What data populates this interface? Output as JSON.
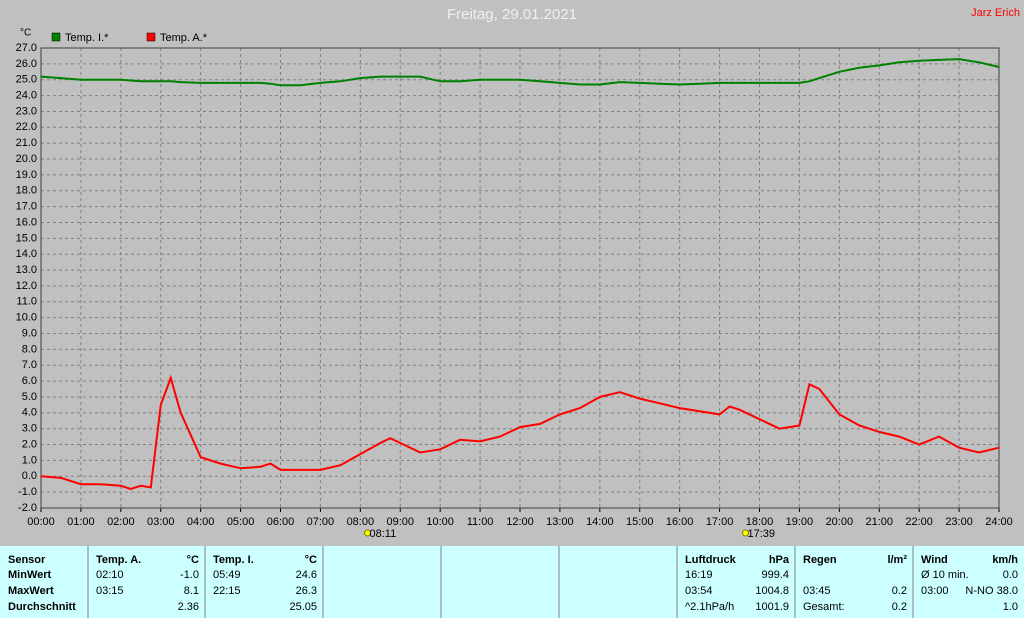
{
  "chart_data": {
    "type": "line",
    "title": "Freitag, 29.01.2021",
    "author": "Jarz Erich",
    "y_unit": "°C",
    "grid": true,
    "legend": "top-left",
    "x": [
      0,
      0.5,
      1,
      1.5,
      2,
      2.25,
      2.5,
      2.75,
      3,
      3.25,
      3.5,
      4,
      4.5,
      5,
      5.5,
      5.75,
      6,
      6.5,
      7,
      7.5,
      8,
      8.5,
      8.75,
      9,
      9.5,
      10,
      10.5,
      11,
      11.5,
      12,
      12.5,
      13,
      13.5,
      14,
      14.5,
      15,
      15.5,
      16,
      16.5,
      17,
      17.25,
      17.5,
      18,
      18.5,
      19,
      19.25,
      19.5,
      20,
      20.5,
      21,
      21.5,
      22,
      22.5,
      23,
      23.5,
      24
    ],
    "series": [
      {
        "name": "Temp. I.*",
        "color": "#008000",
        "values": [
          25.2,
          25.1,
          25.0,
          25.0,
          25.0,
          24.95,
          24.9,
          24.9,
          24.9,
          24.9,
          24.85,
          24.8,
          24.8,
          24.8,
          24.8,
          24.75,
          24.65,
          24.65,
          24.8,
          24.9,
          25.1,
          25.2,
          25.2,
          25.2,
          25.2,
          24.9,
          24.9,
          25.0,
          25.0,
          25.0,
          24.9,
          24.8,
          24.7,
          24.7,
          24.85,
          24.8,
          24.75,
          24.7,
          24.75,
          24.8,
          24.8,
          24.8,
          24.8,
          24.8,
          24.8,
          24.9,
          25.1,
          25.5,
          25.75,
          25.9,
          26.1,
          26.2,
          26.25,
          26.3,
          26.1,
          25.8
        ]
      },
      {
        "name": "Temp. A.*",
        "color": "#ff0000",
        "values": [
          0.0,
          -0.1,
          -0.5,
          -0.5,
          -0.6,
          -0.8,
          -0.6,
          -0.7,
          4.5,
          6.2,
          4.0,
          1.2,
          0.8,
          0.5,
          0.6,
          0.8,
          0.4,
          0.4,
          0.4,
          0.7,
          1.4,
          2.1,
          2.4,
          2.1,
          1.5,
          1.7,
          2.3,
          2.2,
          2.5,
          3.1,
          3.3,
          3.9,
          4.3,
          5.0,
          5.3,
          4.9,
          4.6,
          4.3,
          4.1,
          3.9,
          4.4,
          4.2,
          3.6,
          3.0,
          3.2,
          5.8,
          5.5,
          3.9,
          3.2,
          2.8,
          2.5,
          2.0,
          2.5,
          1.8,
          1.5,
          1.8
        ]
      }
    ],
    "annotations": [
      {
        "x": 8.18,
        "label": "08:11"
      },
      {
        "x": 17.65,
        "label": "17:39"
      }
    ],
    "xlim": [
      0,
      24
    ],
    "xticks": [
      {
        "value": 0,
        "label": "00:00"
      },
      {
        "value": 1,
        "label": "01:00"
      },
      {
        "value": 2,
        "label": "02:00"
      },
      {
        "value": 3,
        "label": "03:00"
      },
      {
        "value": 4,
        "label": "04:00"
      },
      {
        "value": 5,
        "label": "05:00"
      },
      {
        "value": 6,
        "label": "06:00"
      },
      {
        "value": 7,
        "label": "07:00"
      },
      {
        "value": 8,
        "label": "08:00"
      },
      {
        "value": 9,
        "label": "09:00"
      },
      {
        "value": 10,
        "label": "10:00"
      },
      {
        "value": 11,
        "label": "11:00"
      },
      {
        "value": 12,
        "label": "12:00"
      },
      {
        "value": 13,
        "label": "13:00"
      },
      {
        "value": 14,
        "label": "14:00"
      },
      {
        "value": 15,
        "label": "15:00"
      },
      {
        "value": 16,
        "label": "16:00"
      },
      {
        "value": 17,
        "label": "17:00"
      },
      {
        "value": 18,
        "label": "18:00"
      },
      {
        "value": 19,
        "label": "19:00"
      },
      {
        "value": 20,
        "label": "20:00"
      },
      {
        "value": 21,
        "label": "21:00"
      },
      {
        "value": 22,
        "label": "22:00"
      },
      {
        "value": 23,
        "label": "23:00"
      },
      {
        "value": 24,
        "label": "24:00"
      }
    ],
    "ylim": [
      -2,
      27
    ],
    "yticks": [
      {
        "value": -2,
        "label": "-2.0"
      },
      {
        "value": -1,
        "label": "-1.0"
      },
      {
        "value": 0,
        "label": "0.0"
      },
      {
        "value": 1,
        "label": "1.0"
      },
      {
        "value": 2,
        "label": "2.0"
      },
      {
        "value": 3,
        "label": "3.0"
      },
      {
        "value": 4,
        "label": "4.0"
      },
      {
        "value": 5,
        "label": "5.0"
      },
      {
        "value": 6,
        "label": "6.0"
      },
      {
        "value": 7,
        "label": "7.0"
      },
      {
        "value": 8,
        "label": "8.0"
      },
      {
        "value": 9,
        "label": "9.0"
      },
      {
        "value": 10,
        "label": "10.0"
      },
      {
        "value": 11,
        "label": "11.0"
      },
      {
        "value": 12,
        "label": "12.0"
      },
      {
        "value": 13,
        "label": "13.0"
      },
      {
        "value": 14,
        "label": "14.0"
      },
      {
        "value": 15,
        "label": "15.0"
      },
      {
        "value": 16,
        "label": "16.0"
      },
      {
        "value": 17,
        "label": "17.0"
      },
      {
        "value": 18,
        "label": "18.0"
      },
      {
        "value": 19,
        "label": "19.0"
      },
      {
        "value": 20,
        "label": "20.0"
      },
      {
        "value": 21,
        "label": "21.0"
      },
      {
        "value": 22,
        "label": "22.0"
      },
      {
        "value": 23,
        "label": "23.0"
      },
      {
        "value": 24,
        "label": "24.0"
      },
      {
        "value": 25,
        "label": "25.0"
      },
      {
        "value": 26,
        "label": "26.0"
      },
      {
        "value": 27,
        "label": "27.0"
      }
    ]
  },
  "table": {
    "panels": [
      {
        "labels": [
          "Sensor",
          "MinWert",
          "MaxWert",
          "Durchschnitt"
        ]
      },
      {
        "header": [
          "Temp. A.",
          "°C"
        ],
        "rows": [
          {
            "time": "02:10",
            "value": "-1.0"
          },
          {
            "time": "03:15",
            "value": "8.1"
          },
          {
            "value": "2.36"
          }
        ]
      },
      {
        "header": [
          "Temp. I.",
          "°C"
        ],
        "rows": [
          {
            "time": "05:49",
            "value": "24.6"
          },
          {
            "time": "22:15",
            "value": "26.3"
          },
          {
            "value": "25.05"
          }
        ]
      },
      {},
      {},
      {},
      {
        "header": [
          "Luftdruck",
          "hPa"
        ],
        "rows": [
          {
            "time": "16:19",
            "value": "999.4"
          },
          {
            "time": "03:54",
            "value": "1004.8"
          },
          {
            "time": "^2.1hPa/h",
            "value": "1001.9"
          }
        ]
      },
      {
        "header": [
          "Regen",
          "l/m²"
        ],
        "rows": [
          null,
          {
            "time": "03:45",
            "value": "0.2"
          },
          {
            "time": "Gesamt:",
            "value": "0.2"
          }
        ]
      },
      {
        "header": [
          "Wind",
          "km/h"
        ],
        "rows": [
          {
            "time": "Ø 10 min.",
            "value": "0.0"
          },
          {
            "time": "03:00",
            "value": "N-NO 38.0"
          },
          {
            "value": "1.0"
          }
        ]
      }
    ]
  }
}
